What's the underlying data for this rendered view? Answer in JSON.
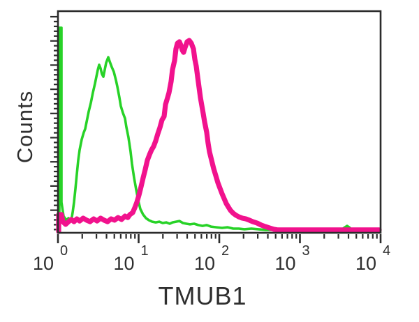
{
  "figure": {
    "background": "#ffffff",
    "frame_color": "#2b2b2b",
    "text_color": "#2e2e2e"
  },
  "chart_data": {
    "type": "line",
    "subtype": "flow-cytometry-histogram-overlay",
    "title": "",
    "xlabel": "TMUB1",
    "ylabel": "Counts",
    "x_scale": "log10",
    "x_range_log": [
      0,
      4
    ],
    "x_tick_base": "10",
    "x_tick_exponents": [
      "0",
      "1",
      "2",
      "3",
      "4"
    ],
    "y_ticks_labeled": false,
    "grid": false,
    "legend": false,
    "series": [
      {
        "id": "green-control-curve",
        "color": "#27d227",
        "stroke_width": 3.6,
        "points": [
          [
            0.017,
            0.6
          ],
          [
            0.017,
            92.5
          ],
          [
            0.043,
            92.5
          ],
          [
            0.043,
            13.8
          ],
          [
            0.069,
            7.5
          ],
          [
            0.104,
            5.7
          ],
          [
            0.13,
            6.6
          ],
          [
            0.165,
            5.7
          ],
          [
            0.182,
            9.1
          ],
          [
            0.199,
            13.8
          ],
          [
            0.216,
            19.5
          ],
          [
            0.234,
            26.4
          ],
          [
            0.251,
            32.7
          ],
          [
            0.268,
            37.4
          ],
          [
            0.294,
            42.1
          ],
          [
            0.32,
            45.3
          ],
          [
            0.338,
            46.9
          ],
          [
            0.355,
            50.0
          ],
          [
            0.381,
            54.7
          ],
          [
            0.407,
            58.5
          ],
          [
            0.433,
            63.2
          ],
          [
            0.459,
            67.3
          ],
          [
            0.476,
            70.4
          ],
          [
            0.494,
            73.6
          ],
          [
            0.511,
            75.8
          ],
          [
            0.528,
            74.2
          ],
          [
            0.545,
            71.7
          ],
          [
            0.563,
            70.4
          ],
          [
            0.58,
            73.6
          ],
          [
            0.597,
            76.7
          ],
          [
            0.623,
            79.2
          ],
          [
            0.641,
            77.4
          ],
          [
            0.667,
            74.8
          ],
          [
            0.693,
            72.6
          ],
          [
            0.719,
            68.9
          ],
          [
            0.736,
            66.0
          ],
          [
            0.762,
            61.0
          ],
          [
            0.779,
            57.2
          ],
          [
            0.805,
            54.1
          ],
          [
            0.831,
            51.6
          ],
          [
            0.848,
            47.8
          ],
          [
            0.874,
            43.1
          ],
          [
            0.9,
            36.8
          ],
          [
            0.918,
            31.1
          ],
          [
            0.944,
            24.8
          ],
          [
            0.97,
            19.5
          ],
          [
            0.996,
            14.5
          ],
          [
            1.022,
            10.7
          ],
          [
            1.056,
            8.2
          ],
          [
            1.091,
            6.6
          ],
          [
            1.126,
            5.7
          ],
          [
            1.169,
            5.0
          ],
          [
            1.212,
            4.7
          ],
          [
            1.255,
            5.0
          ],
          [
            1.299,
            4.4
          ],
          [
            1.342,
            4.7
          ],
          [
            1.385,
            4.1
          ],
          [
            1.42,
            4.7
          ],
          [
            1.463,
            5.0
          ],
          [
            1.506,
            5.3
          ],
          [
            1.55,
            4.4
          ],
          [
            1.593,
            4.1
          ],
          [
            1.636,
            3.8
          ],
          [
            1.688,
            4.1
          ],
          [
            1.74,
            3.5
          ],
          [
            1.792,
            3.1
          ],
          [
            1.844,
            3.5
          ],
          [
            1.896,
            2.8
          ],
          [
            1.965,
            2.5
          ],
          [
            2.035,
            2.2
          ],
          [
            2.104,
            2.5
          ],
          [
            2.173,
            1.9
          ],
          [
            2.242,
            1.9
          ],
          [
            2.312,
            1.6
          ],
          [
            2.398,
            1.9
          ],
          [
            2.485,
            1.6
          ],
          [
            2.571,
            1.3
          ],
          [
            2.658,
            1.3
          ],
          [
            2.745,
            1.3
          ],
          [
            2.831,
            1.3
          ],
          [
            2.918,
            0.9
          ],
          [
            3.004,
            0.9
          ],
          [
            3.091,
            0.9
          ],
          [
            3.177,
            0.9
          ],
          [
            3.264,
            1.3
          ],
          [
            3.351,
            0.9
          ],
          [
            3.437,
            1.3
          ],
          [
            3.524,
            1.6
          ],
          [
            3.558,
            2.5
          ],
          [
            3.584,
            3.1
          ],
          [
            3.61,
            2.5
          ],
          [
            3.636,
            1.6
          ],
          [
            3.697,
            0.9
          ],
          [
            3.784,
            0.9
          ],
          [
            3.87,
            0.6
          ],
          [
            3.957,
            0.6
          ],
          [
            3.991,
            0.6
          ]
        ]
      },
      {
        "id": "tmub1-pink-curve",
        "color": "#f1128d",
        "stroke_width": 7.2,
        "points": [
          [
            0.009,
            0.6
          ],
          [
            0.009,
            8.2
          ],
          [
            0.043,
            8.2
          ],
          [
            0.061,
            5.0
          ],
          [
            0.095,
            3.8
          ],
          [
            0.13,
            5.0
          ],
          [
            0.165,
            6.0
          ],
          [
            0.199,
            5.0
          ],
          [
            0.234,
            6.3
          ],
          [
            0.268,
            5.3
          ],
          [
            0.312,
            6.6
          ],
          [
            0.355,
            5.7
          ],
          [
            0.398,
            5.0
          ],
          [
            0.442,
            6.3
          ],
          [
            0.485,
            5.3
          ],
          [
            0.528,
            6.6
          ],
          [
            0.571,
            5.7
          ],
          [
            0.615,
            5.0
          ],
          [
            0.658,
            6.3
          ],
          [
            0.701,
            5.7
          ],
          [
            0.745,
            6.9
          ],
          [
            0.788,
            6.0
          ],
          [
            0.831,
            7.5
          ],
          [
            0.866,
            6.9
          ],
          [
            0.892,
            8.2
          ],
          [
            0.926,
            9.1
          ],
          [
            0.952,
            11.3
          ],
          [
            0.978,
            13.8
          ],
          [
            1.004,
            17.0
          ],
          [
            1.03,
            20.8
          ],
          [
            1.056,
            24.8
          ],
          [
            1.082,
            28.6
          ],
          [
            1.108,
            32.7
          ],
          [
            1.134,
            35.2
          ],
          [
            1.16,
            37.4
          ],
          [
            1.186,
            39.0
          ],
          [
            1.212,
            41.5
          ],
          [
            1.238,
            44.7
          ],
          [
            1.264,
            47.5
          ],
          [
            1.29,
            50.9
          ],
          [
            1.316,
            52.5
          ],
          [
            1.333,
            57.9
          ],
          [
            1.359,
            61.0
          ],
          [
            1.377,
            63.2
          ],
          [
            1.403,
            68.2
          ],
          [
            1.42,
            73.6
          ],
          [
            1.446,
            77.7
          ],
          [
            1.463,
            83.0
          ],
          [
            1.481,
            85.5
          ],
          [
            1.506,
            86.2
          ],
          [
            1.524,
            84.6
          ],
          [
            1.541,
            82.4
          ],
          [
            1.558,
            81.4
          ],
          [
            1.576,
            83.6
          ],
          [
            1.602,
            86.2
          ],
          [
            1.628,
            86.8
          ],
          [
            1.654,
            85.5
          ],
          [
            1.68,
            83.0
          ],
          [
            1.697,
            78.3
          ],
          [
            1.714,
            75.2
          ],
          [
            1.732,
            70.4
          ],
          [
            1.749,
            65.7
          ],
          [
            1.766,
            61.0
          ],
          [
            1.784,
            57.2
          ],
          [
            1.801,
            53.8
          ],
          [
            1.818,
            50.0
          ],
          [
            1.844,
            45.3
          ],
          [
            1.861,
            40.6
          ],
          [
            1.879,
            36.5
          ],
          [
            1.905,
            32.7
          ],
          [
            1.931,
            28.9
          ],
          [
            1.957,
            25.8
          ],
          [
            1.983,
            22.6
          ],
          [
            2.009,
            20.1
          ],
          [
            2.035,
            17.6
          ],
          [
            2.061,
            15.4
          ],
          [
            2.087,
            13.2
          ],
          [
            2.113,
            11.6
          ],
          [
            2.139,
            10.1
          ],
          [
            2.173,
            8.8
          ],
          [
            2.208,
            7.9
          ],
          [
            2.242,
            7.2
          ],
          [
            2.286,
            6.6
          ],
          [
            2.329,
            6.3
          ],
          [
            2.372,
            5.7
          ],
          [
            2.416,
            5.0
          ],
          [
            2.468,
            4.4
          ],
          [
            2.519,
            3.5
          ],
          [
            2.571,
            2.8
          ],
          [
            2.623,
            2.2
          ],
          [
            2.675,
            1.6
          ],
          [
            2.727,
            1.3
          ],
          [
            2.831,
            1.3
          ],
          [
            3.004,
            1.3
          ],
          [
            3.177,
            1.3
          ],
          [
            3.351,
            1.3
          ],
          [
            3.524,
            1.3
          ],
          [
            3.697,
            1.3
          ],
          [
            3.87,
            1.3
          ],
          [
            3.983,
            1.3
          ]
        ]
      }
    ]
  }
}
